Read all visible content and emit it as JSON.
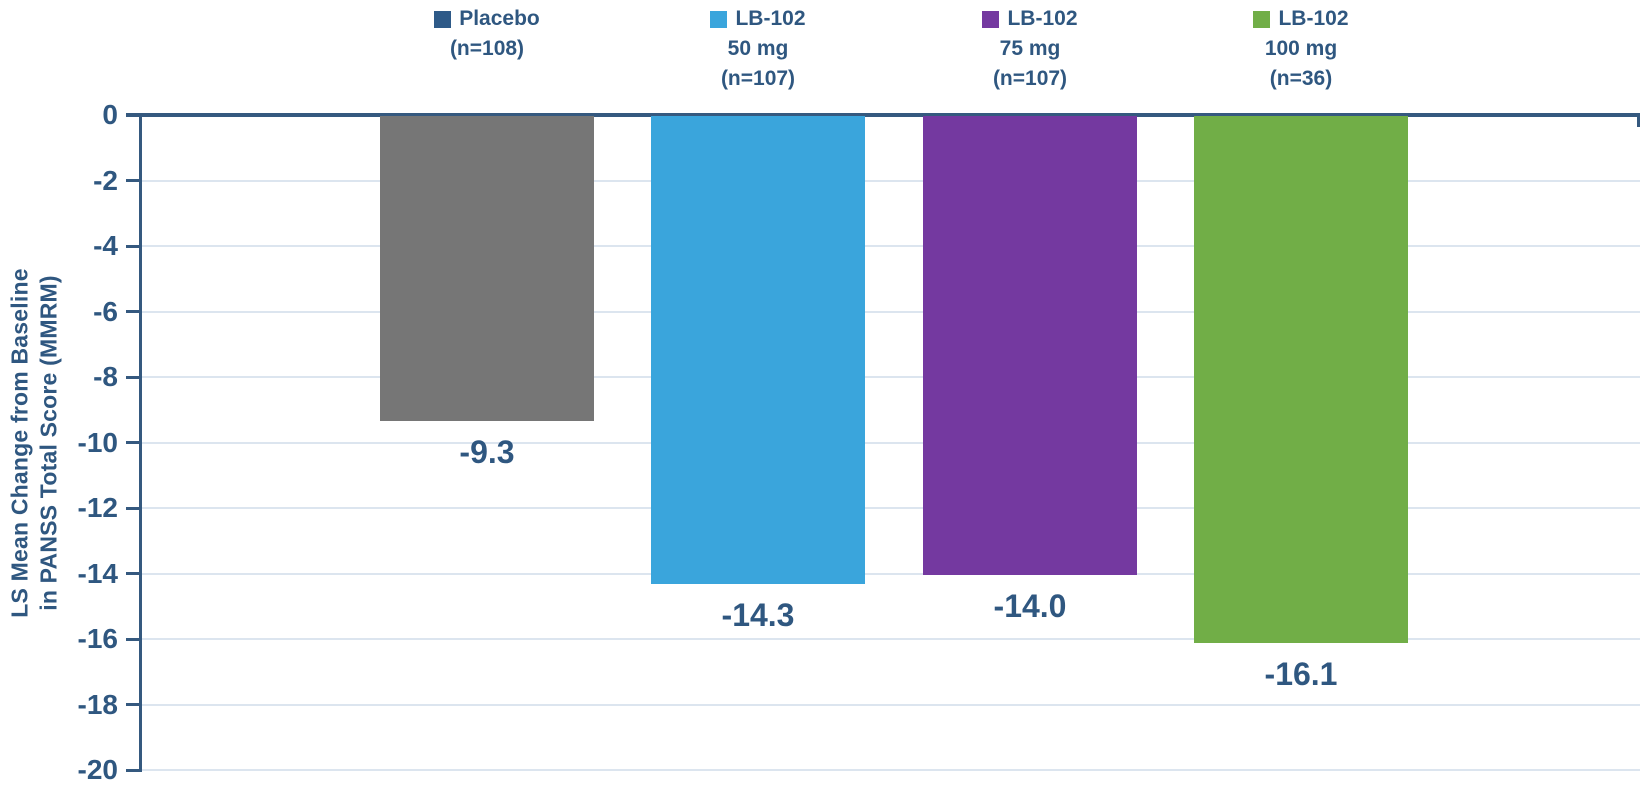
{
  "chart_data": {
    "type": "bar",
    "title": "",
    "ylabel_line1": "LS Mean Change from Baseline",
    "ylabel_line2": "in PANSS Total Score (MMRM)",
    "xlabel": "",
    "ylim": [
      -20,
      0
    ],
    "yticks": [
      "0",
      "-2",
      "-4",
      "-6",
      "-8",
      "-10",
      "-12",
      "-14",
      "-16",
      "-18",
      "-20"
    ],
    "grid": true,
    "legend_position": "top",
    "categories": [
      "Placebo (n=108)",
      "LB-102 50 mg (n=107)",
      "LB-102 75 mg (n=107)",
      "LB-102 100 mg (n=36)"
    ],
    "values": [
      -9.3,
      -14.3,
      -14.0,
      -16.1
    ],
    "series": [
      {
        "name": "Placebo (n=108)",
        "legend_lines": [
          "Placebo",
          "(n=108)"
        ],
        "value": -9.3,
        "value_label": "-9.3",
        "bar_color": "#767676",
        "swatch_color": "#2E5A88"
      },
      {
        "name": "LB-102 50 mg (n=107)",
        "legend_lines": [
          "LB-102",
          "50 mg",
          "(n=107)"
        ],
        "value": -14.3,
        "value_label": "-14.3",
        "bar_color": "#3AA5DC",
        "swatch_color": "#3AA5DC"
      },
      {
        "name": "LB-102 75 mg (n=107)",
        "legend_lines": [
          "LB-102",
          "75 mg",
          "(n=107)"
        ],
        "value": -14.0,
        "value_label": "-14.0",
        "bar_color": "#7439A0",
        "swatch_color": "#7439A0"
      },
      {
        "name": "LB-102 100 mg (n=36)",
        "legend_lines": [
          "LB-102",
          "100 mg",
          "(n=36)"
        ],
        "value": -16.1,
        "value_label": "-16.1",
        "bar_color": "#71AE47",
        "swatch_color": "#71AE47"
      }
    ],
    "colors": {
      "text": "#2F5780",
      "axis": "#35597F",
      "gridline": "#DCE5EF",
      "background": "#FFFFFF"
    }
  }
}
